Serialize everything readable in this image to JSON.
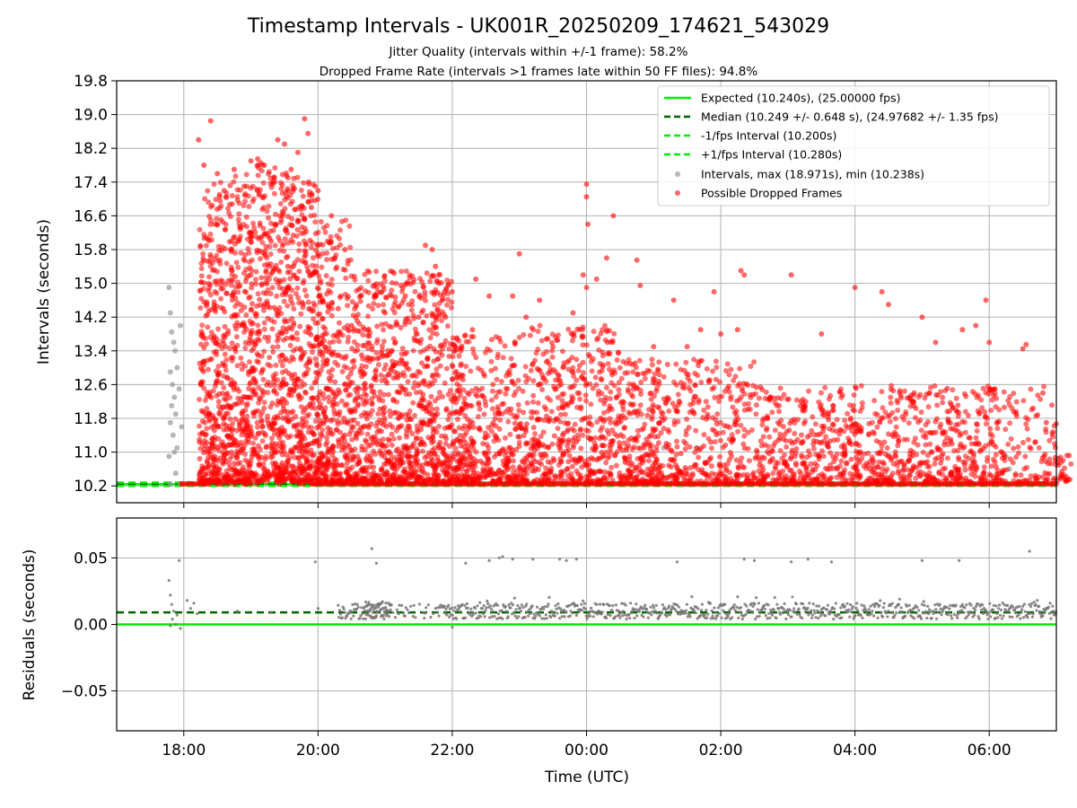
{
  "figure": {
    "title": "Timestamp Intervals - UK001R_20250209_174621_543029",
    "subtitle_line1": "Jitter Quality (intervals within +/-1 frame): 58.2%",
    "subtitle_line2": "Dropped Frame Rate (intervals >1 frames late within 50 FF files): 94.8%"
  },
  "chart_data": [
    {
      "type": "scatter",
      "panel": "top",
      "xlabel": "",
      "ylabel": "Intervals (seconds)",
      "ylim": [
        9.8,
        19.8
      ],
      "yticks": [
        "10.2",
        "11.0",
        "11.8",
        "12.6",
        "13.4",
        "14.2",
        "15.0",
        "15.8",
        "16.6",
        "17.4",
        "18.2",
        "19.0",
        "19.8"
      ],
      "xlim_hours": [
        17.0,
        31.0
      ],
      "xticks": [
        "18:00",
        "20:00",
        "22:00",
        "00:00",
        "02:00",
        "04:00",
        "06:00"
      ],
      "grid": "horizontal",
      "legend_position": "top-right",
      "reference_lines": [
        {
          "label": "Expected (10.240s), (25.00000 fps)",
          "y": 10.24,
          "style": "solid",
          "color": "#00ee00"
        },
        {
          "label": "Median (10.249 +/- 0.648 s), (24.97682 +/- 1.35 fps)",
          "y": 10.249,
          "style": "dashed",
          "color": "#006400"
        },
        {
          "label": "-1/fps Interval (10.200s)",
          "y": 10.2,
          "style": "dashed",
          "color": "#00ee00"
        },
        {
          "label": "+1/fps Interval (10.280s)",
          "y": 10.28,
          "style": "dashed",
          "color": "#00ee00"
        }
      ],
      "series": [
        {
          "name": "Intervals, max (18.971s), min (10.238s)",
          "color": "#999999",
          "points": [
            [
              17.78,
              14.9
            ],
            [
              17.8,
              14.3
            ],
            [
              17.82,
              13.85
            ],
            [
              17.85,
              13.6
            ],
            [
              17.87,
              13.4
            ],
            [
              17.9,
              13.0
            ],
            [
              17.8,
              12.9
            ],
            [
              17.83,
              12.6
            ],
            [
              17.86,
              12.3
            ],
            [
              17.82,
              12.1
            ],
            [
              17.88,
              11.9
            ],
            [
              17.8,
              11.7
            ],
            [
              17.84,
              11.4
            ],
            [
              17.9,
              11.1
            ],
            [
              17.78,
              10.9
            ],
            [
              17.86,
              11.0
            ],
            [
              17.95,
              14.0
            ],
            [
              17.93,
              12.5
            ],
            [
              17.97,
              11.6
            ],
            [
              17.88,
              10.5
            ],
            [
              25.15,
              11.1
            ],
            [
              25.65,
              11.1
            ],
            [
              30.25,
              10.9
            ],
            [
              30.3,
              10.6
            ],
            [
              17.8,
              10.25
            ],
            [
              17.95,
              10.25
            ],
            [
              18.1,
              10.25
            ]
          ]
        },
        {
          "name": "Possible Dropped Frames",
          "color": "#ff0000",
          "generated_range": {
            "x": [
              17.95,
              31.0
            ],
            "y": [
              10.24,
              18.97
            ]
          },
          "points": [
            [
              18.22,
              18.4
            ],
            [
              18.4,
              18.85
            ],
            [
              18.3,
              17.8
            ],
            [
              18.5,
              17.6
            ],
            [
              18.6,
              17.2
            ],
            [
              18.75,
              17.7
            ],
            [
              18.9,
              17.3
            ],
            [
              19.0,
              17.9
            ],
            [
              19.2,
              17.8
            ],
            [
              19.35,
              17.5
            ],
            [
              19.5,
              18.3
            ],
            [
              19.6,
              17.7
            ],
            [
              19.7,
              18.1
            ],
            [
              19.8,
              18.9
            ],
            [
              19.85,
              18.55
            ],
            [
              19.4,
              18.4
            ],
            [
              19.1,
              17.95
            ],
            [
              18.5,
              16.4
            ],
            [
              18.7,
              15.8
            ],
            [
              19.0,
              16.1
            ],
            [
              19.3,
              16.0
            ],
            [
              19.55,
              15.4
            ],
            [
              19.9,
              16.8
            ],
            [
              20.0,
              17.2
            ],
            [
              20.2,
              16.6
            ],
            [
              20.4,
              15.8
            ],
            [
              20.25,
              15.6
            ],
            [
              20.3,
              14.4
            ],
            [
              20.5,
              14.0
            ],
            [
              20.65,
              13.3
            ],
            [
              21.0,
              14.3
            ],
            [
              21.3,
              14.7
            ],
            [
              21.5,
              14.2
            ],
            [
              21.6,
              15.9
            ],
            [
              21.7,
              15.8
            ],
            [
              21.75,
              15.4
            ],
            [
              21.8,
              15.0
            ],
            [
              21.85,
              14.6
            ],
            [
              21.9,
              14.2
            ],
            [
              22.0,
              14.8
            ],
            [
              22.3,
              13.9
            ],
            [
              22.35,
              15.1
            ],
            [
              22.55,
              14.7
            ],
            [
              22.7,
              13.7
            ],
            [
              22.9,
              14.7
            ],
            [
              23.0,
              15.7
            ],
            [
              23.1,
              14.2
            ],
            [
              23.3,
              14.6
            ],
            [
              23.5,
              13.5
            ],
            [
              23.8,
              14.3
            ],
            [
              23.95,
              15.2
            ],
            [
              24.0,
              14.9
            ],
            [
              24.0,
              17.35
            ],
            [
              24.0,
              17.05
            ],
            [
              24.02,
              16.4
            ],
            [
              24.15,
              15.1
            ],
            [
              24.3,
              15.6
            ],
            [
              24.4,
              16.6
            ],
            [
              24.75,
              15.55
            ],
            [
              24.8,
              14.95
            ],
            [
              25.0,
              13.5
            ],
            [
              25.3,
              14.6
            ],
            [
              25.5,
              13.5
            ],
            [
              25.7,
              13.9
            ],
            [
              25.9,
              14.8
            ],
            [
              26.3,
              15.3
            ],
            [
              26.35,
              15.2
            ],
            [
              26.0,
              13.8
            ],
            [
              26.25,
              13.9
            ],
            [
              27.05,
              15.2
            ],
            [
              27.5,
              13.8
            ],
            [
              28.0,
              14.9
            ],
            [
              28.4,
              14.8
            ],
            [
              28.5,
              14.5
            ],
            [
              29.0,
              14.2
            ],
            [
              29.2,
              13.6
            ],
            [
              29.6,
              13.9
            ],
            [
              29.8,
              14.0
            ],
            [
              29.95,
              14.6
            ],
            [
              30.0,
              13.6
            ],
            [
              30.5,
              13.45
            ],
            [
              30.55,
              13.55
            ],
            [
              30.8,
              12.4
            ],
            [
              30.85,
              11.7
            ],
            [
              17.97,
              10.25
            ],
            [
              18.3,
              10.25
            ],
            [
              18.9,
              10.25
            ],
            [
              19.95,
              10.25
            ],
            [
              31.0,
              10.25
            ]
          ]
        }
      ]
    },
    {
      "type": "scatter",
      "panel": "bottom",
      "xlabel": "Time (UTC)",
      "ylabel": "Residuals (seconds)",
      "ylim": [
        -0.08,
        0.08
      ],
      "yticks": [
        "−0.05",
        "0.00",
        "0.05"
      ],
      "xlim_hours": [
        17.0,
        31.0
      ],
      "xticks": [
        "18:00",
        "20:00",
        "22:00",
        "00:00",
        "02:00",
        "04:00",
        "06:00"
      ],
      "grid": "both",
      "reference_lines": [
        {
          "y": 0.0,
          "style": "solid",
          "color": "#00ee00"
        },
        {
          "y": 0.009,
          "style": "dashed",
          "color": "#006400"
        }
      ],
      "series": [
        {
          "color": "#777777",
          "generated_range": {
            "x": [
              20.3,
              31.0
            ],
            "y": [
              -0.002,
              0.019
            ]
          },
          "points": [
            [
              17.78,
              0.033
            ],
            [
              17.8,
              0.022
            ],
            [
              17.82,
              0.015
            ],
            [
              17.85,
              0.01
            ],
            [
              17.83,
              0.004
            ],
            [
              17.88,
              0.0
            ],
            [
              17.8,
              -0.001
            ],
            [
              17.9,
              0.007
            ],
            [
              17.95,
              -0.003
            ],
            [
              17.93,
              0.048
            ],
            [
              18.05,
              0.018
            ],
            [
              18.1,
              0.012
            ],
            [
              18.15,
              0.016
            ],
            [
              18.2,
              0.008
            ],
            [
              18.8,
              0.01
            ],
            [
              19.3,
              0.009
            ],
            [
              19.96,
              0.047
            ],
            [
              20.0,
              0.012
            ],
            [
              20.8,
              0.057
            ],
            [
              20.87,
              0.046
            ],
            [
              22.2,
              0.046
            ],
            [
              22.55,
              0.048
            ],
            [
              22.7,
              0.05
            ],
            [
              22.75,
              0.051
            ],
            [
              22.9,
              0.049
            ],
            [
              23.2,
              0.049
            ],
            [
              23.6,
              0.049
            ],
            [
              23.7,
              0.048
            ],
            [
              23.85,
              0.049
            ],
            [
              25.35,
              0.047
            ],
            [
              26.35,
              0.049
            ],
            [
              26.5,
              0.048
            ],
            [
              27.05,
              0.047
            ],
            [
              27.3,
              0.049
            ],
            [
              27.65,
              0.047
            ],
            [
              29.0,
              0.048
            ],
            [
              29.55,
              0.048
            ],
            [
              30.6,
              0.055
            ],
            [
              22.0,
              -0.002
            ]
          ]
        }
      ]
    }
  ]
}
